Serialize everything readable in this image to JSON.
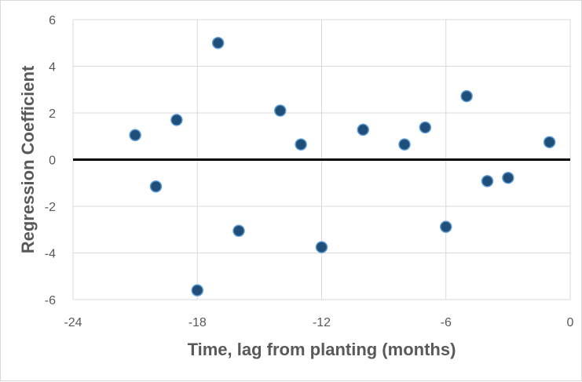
{
  "chart_data": {
    "type": "scatter",
    "title": "",
    "xlabel": "Time, lag from planting (months)",
    "ylabel": "Regression Coefficient",
    "xlim": [
      -24,
      0
    ],
    "ylim": [
      -6,
      6
    ],
    "xticks": [
      -24,
      -18,
      -12,
      -6,
      0
    ],
    "yticks": [
      -6,
      -4,
      -2,
      0,
      2,
      4,
      6
    ],
    "xtick_labels": [
      "-24",
      "-18",
      "-12",
      "-6",
      "0"
    ],
    "ytick_labels": [
      "-6",
      "-4",
      "-2",
      "0",
      "2",
      "4",
      "6"
    ],
    "grid": {
      "vertical": true,
      "horizontal": true
    },
    "zero_line": {
      "y": 0,
      "color": "#000000"
    },
    "legend": "none",
    "series": [
      {
        "marker_color": "#1f4e79",
        "marker_outline": "#5b9bd5",
        "points": [
          {
            "x": -21,
            "y": 1.05
          },
          {
            "x": -20,
            "y": -1.15
          },
          {
            "x": -19,
            "y": 1.7
          },
          {
            "x": -18,
            "y": -5.6
          },
          {
            "x": -17,
            "y": 5.0
          },
          {
            "x": -16,
            "y": -3.05
          },
          {
            "x": -14,
            "y": 2.1
          },
          {
            "x": -13,
            "y": 0.65
          },
          {
            "x": -12,
            "y": -3.75
          },
          {
            "x": -10,
            "y": 1.28
          },
          {
            "x": -8,
            "y": 0.65
          },
          {
            "x": -7,
            "y": 1.38
          },
          {
            "x": -6,
            "y": -2.88
          },
          {
            "x": -5,
            "y": 2.72
          },
          {
            "x": -4,
            "y": -0.92
          },
          {
            "x": -3,
            "y": -0.78
          },
          {
            "x": -1,
            "y": 0.75
          }
        ]
      }
    ],
    "colors": {
      "grid": "#d9d9d9",
      "text": "#595959",
      "frame": "#d9d9d9"
    }
  }
}
